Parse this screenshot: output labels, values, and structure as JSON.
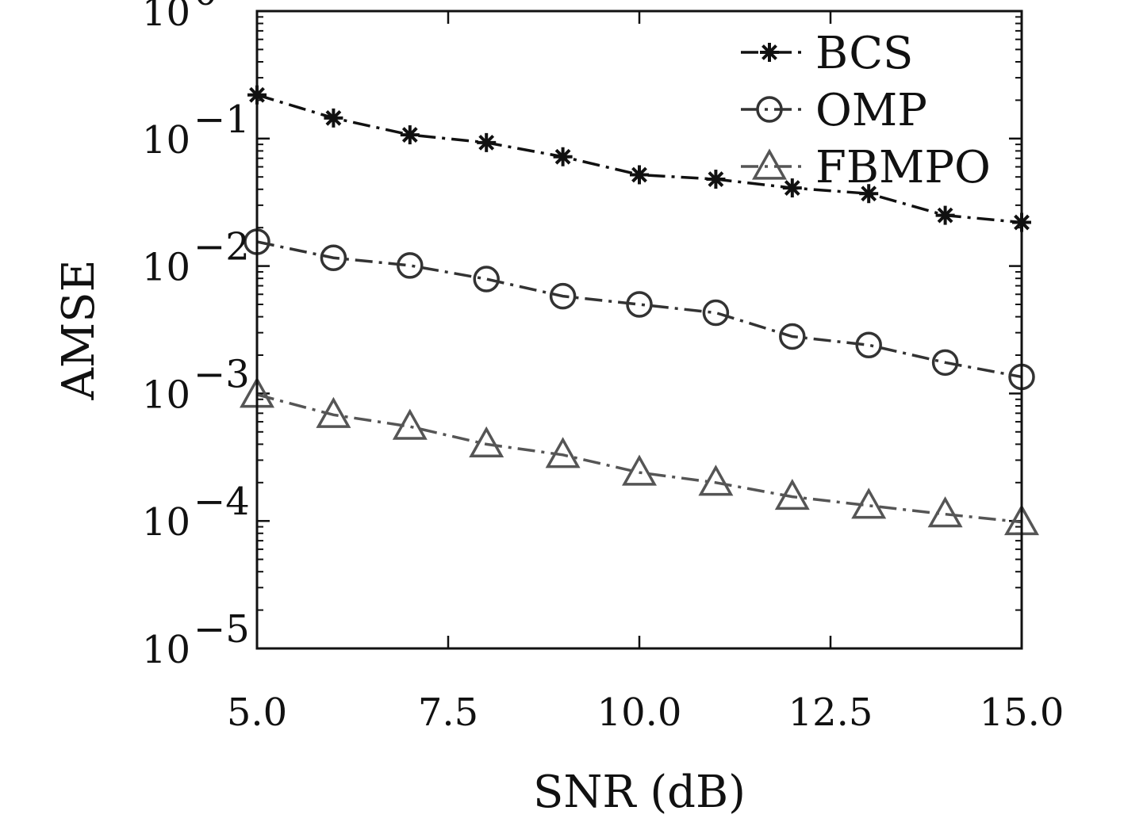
{
  "chart_data": {
    "type": "line",
    "title": "",
    "xlabel": "SNR (dB)",
    "ylabel": "AMSE",
    "xlim": [
      5.0,
      15.0
    ],
    "ylim": [
      1e-05,
      1
    ],
    "yscale": "log",
    "grid": false,
    "legend_position": "top-right",
    "x_ticks": [
      "5.0",
      "7.5",
      "10.0",
      "12.5",
      "15.0"
    ],
    "y_ticks": [
      {
        "base": "10",
        "exp": "0"
      },
      {
        "base": "10",
        "exp": "−1"
      },
      {
        "base": "10",
        "exp": "−2"
      },
      {
        "base": "10",
        "exp": "−3"
      },
      {
        "base": "10",
        "exp": "−4"
      },
      {
        "base": "10",
        "exp": "−5"
      }
    ],
    "x": [
      5,
      6,
      7,
      8,
      9,
      10,
      11,
      12,
      13,
      14,
      15
    ],
    "series": [
      {
        "name": "BCS",
        "marker": "star",
        "color": "#111111",
        "values": [
          0.22,
          0.145,
          0.107,
          0.093,
          0.072,
          0.052,
          0.048,
          0.041,
          0.037,
          0.025,
          0.022
        ]
      },
      {
        "name": "OMP",
        "marker": "circle",
        "color": "#333333",
        "values": [
          0.0155,
          0.0116,
          0.0101,
          0.0079,
          0.0058,
          0.005,
          0.0043,
          0.0028,
          0.0024,
          0.00175,
          0.00135
        ]
      },
      {
        "name": "FBMPO",
        "marker": "triangle",
        "color": "#555555",
        "values": [
          0.00098,
          0.00068,
          0.00055,
          0.0004,
          0.00033,
          0.00024,
          0.0002,
          0.000155,
          0.000132,
          0.000113,
          9.8e-05
        ]
      }
    ]
  }
}
